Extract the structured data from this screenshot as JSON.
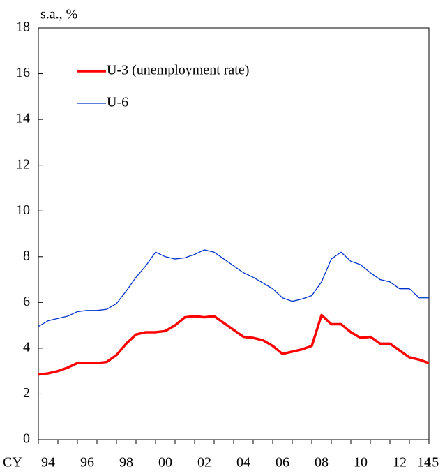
{
  "chart_data": {
    "type": "line",
    "ylabel": "s.a., %",
    "xlabel": "CY",
    "x": [
      1994,
      1994.5,
      1995,
      1995.5,
      1996,
      1996.5,
      1997,
      1997.5,
      1998,
      1998.5,
      1999,
      1999.5,
      2000,
      2000.5,
      2001,
      2001.5,
      2002,
      2002.5,
      2003,
      2003.5,
      2004,
      2004.5,
      2005,
      2005.5,
      2006,
      2006.5,
      2007,
      2007.5,
      2008,
      2008.5,
      2009,
      2009.5,
      2010,
      2010.5,
      2011,
      2011.5,
      2012,
      2012.5,
      2013,
      2013.5,
      2014
    ],
    "series": [
      {
        "name": "U-3 (unemployment rate)",
        "color": "#ff0000",
        "width": 3.5,
        "values": [
          2.85,
          2.9,
          3.0,
          3.15,
          3.35,
          3.35,
          3.35,
          3.4,
          3.7,
          4.2,
          4.6,
          4.7,
          4.7,
          4.75,
          5.0,
          5.35,
          5.4,
          5.35,
          5.4,
          5.1,
          4.8,
          4.5,
          4.45,
          4.35,
          4.1,
          3.75,
          3.85,
          3.95,
          4.1,
          5.45,
          5.05,
          5.05,
          4.7,
          4.45,
          4.5,
          4.2,
          4.2,
          3.9,
          3.6,
          3.5,
          3.35
        ]
      },
      {
        "name": "U-6",
        "color": "#0033cc",
        "width": 1.3,
        "values": [
          4.95,
          5.2,
          5.3,
          5.4,
          5.6,
          5.65,
          5.65,
          5.7,
          5.95,
          6.5,
          7.1,
          7.6,
          8.2,
          8.0,
          7.9,
          7.95,
          8.1,
          8.3,
          8.2,
          7.9,
          7.6,
          7.3,
          7.1,
          6.85,
          6.6,
          6.2,
          6.05,
          6.15,
          6.3,
          6.9,
          7.9,
          8.2,
          7.8,
          7.65,
          7.3,
          7.0,
          6.9,
          6.6,
          6.6,
          6.2,
          6.2
        ]
      }
    ],
    "xlim": [
      1994,
      2014
    ],
    "xticks": [
      {
        "value": 1994.5,
        "label": "94"
      },
      {
        "value": 1996.5,
        "label": "96"
      },
      {
        "value": 1998.5,
        "label": "98"
      },
      {
        "value": 2000.5,
        "label": "00"
      },
      {
        "value": 2002.5,
        "label": "02"
      },
      {
        "value": 2004.5,
        "label": "04"
      },
      {
        "value": 2006.5,
        "label": "06"
      },
      {
        "value": 2008.5,
        "label": "08"
      },
      {
        "value": 2010.5,
        "label": "10"
      },
      {
        "value": 2012.5,
        "label": "12"
      },
      {
        "value": 2013.75,
        "label": "14"
      },
      {
        "value": 2014.15,
        "label": "15"
      }
    ],
    "xminorticks": [
      1994,
      1995,
      1996,
      1997,
      1998,
      1999,
      2000,
      2001,
      2002,
      2003,
      2004,
      2005,
      2006,
      2007,
      2008,
      2009,
      2010,
      2011,
      2012,
      2013,
      2014
    ],
    "ylim": [
      0,
      18
    ],
    "yticks": [
      0,
      2,
      4,
      6,
      8,
      10,
      12,
      14,
      16,
      18
    ]
  }
}
